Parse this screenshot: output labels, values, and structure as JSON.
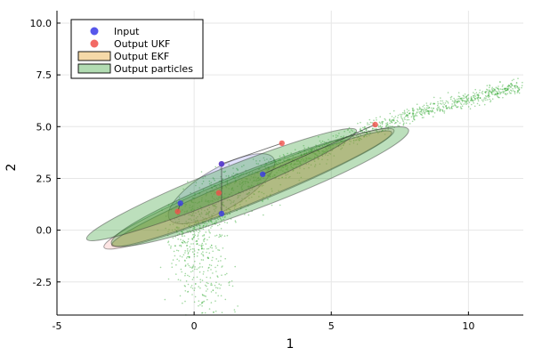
{
  "chart_data": {
    "type": "scatter",
    "title": "",
    "xlabel": "1",
    "ylabel": "2",
    "xlim": [
      -5,
      12
    ],
    "ylim": [
      -4.1,
      10.6
    ],
    "xticks": [
      -5,
      0,
      5,
      10
    ],
    "xtick_labels": [
      "-5",
      "0",
      "5",
      "10"
    ],
    "yticks": [
      -2.5,
      0.0,
      2.5,
      5.0,
      7.5,
      10.0
    ],
    "ytick_labels": [
      "-2.5",
      "0.0",
      "2.5",
      "5.0",
      "7.5",
      "10.0"
    ],
    "grid": true,
    "legend_position": "top-left",
    "legend": [
      {
        "label": "Input",
        "marker": "circle",
        "color": "#3a3ae8"
      },
      {
        "label": "Output UKF",
        "marker": "circle",
        "color": "#f0504a"
      },
      {
        "label": "Output EKF",
        "marker": "rect",
        "color": "#f5d9a8"
      },
      {
        "label": "Output particles",
        "marker": "rect",
        "color": "#b2dcb2"
      }
    ],
    "input_points": [
      {
        "x": 1.0,
        "y": 3.2
      },
      {
        "x": -0.5,
        "y": 1.3
      },
      {
        "x": 2.5,
        "y": 2.7
      },
      {
        "x": 1.0,
        "y": 0.8
      }
    ],
    "ukf_points": [
      {
        "x": 1.0,
        "y": 3.2
      },
      {
        "x": -0.6,
        "y": 0.9
      },
      {
        "x": 3.2,
        "y": 4.2
      },
      {
        "x": 6.6,
        "y": 5.1
      },
      {
        "x": 0.9,
        "y": 1.8
      }
    ],
    "ellipses": [
      {
        "series": "Input",
        "cx": 1.0,
        "cy": 2.0,
        "a": 2.2,
        "b": 1.0,
        "angle_deg": 30,
        "color": "#3a3ae8",
        "fill_opacity": 0.15
      },
      {
        "series": "Output UKF",
        "cx": 2.0,
        "cy": 2.0,
        "a": 5.7,
        "b": 0.75,
        "angle_deg": 22,
        "color": "#f0504a",
        "fill_opacity": 0.15
      },
      {
        "series": "Output EKF",
        "cx": 2.1,
        "cy": 2.0,
        "a": 5.5,
        "b": 0.65,
        "angle_deg": 22,
        "color": "#d9a657",
        "fill_opacity": 0.4
      },
      {
        "series": "Output particles",
        "cx": 2.4,
        "cy": 2.1,
        "a": 5.8,
        "b": 0.95,
        "angle_deg": 21,
        "color": "#2e9b2e",
        "fill_opacity": 0.32
      },
      {
        "series": "Output particles",
        "cx": 1.0,
        "cy": 2.2,
        "a": 5.3,
        "b": 0.7,
        "angle_deg": 22,
        "color": "#2e9b2e",
        "fill_opacity": 0.32
      }
    ],
    "particle_curve": [
      {
        "x": 0.9,
        "y": -4.0
      },
      {
        "x": 0.2,
        "y": -1.0
      },
      {
        "x": 0.3,
        "y": 0.5
      },
      {
        "x": 1.2,
        "y": 1.5
      },
      {
        "x": 2.5,
        "y": 2.6
      },
      {
        "x": 4.5,
        "y": 3.8
      },
      {
        "x": 7.5,
        "y": 5.4
      },
      {
        "x": 10.0,
        "y": 6.3
      },
      {
        "x": 12.0,
        "y": 7.0
      }
    ],
    "connector_lines": [
      [
        {
          "x": 1.0,
          "y": 3.2
        },
        {
          "x": 1.0,
          "y": 0.8
        }
      ],
      [
        {
          "x": -0.5,
          "y": 1.3
        },
        {
          "x": -0.6,
          "y": 0.9
        }
      ],
      [
        {
          "x": 1.0,
          "y": 3.2
        },
        {
          "x": 3.2,
          "y": 4.2
        }
      ],
      [
        {
          "x": 2.5,
          "y": 2.7
        },
        {
          "x": 6.6,
          "y": 5.1
        }
      ]
    ]
  }
}
